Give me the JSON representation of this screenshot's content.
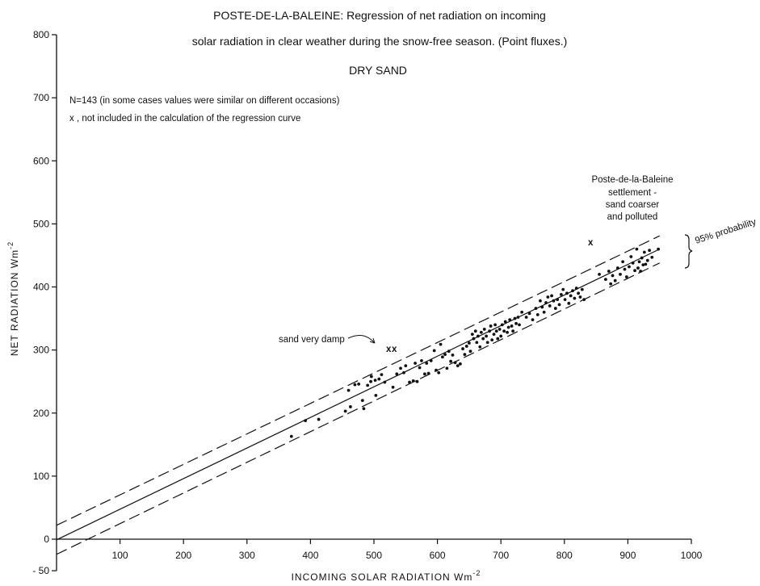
{
  "chart_data": {
    "type": "scatter",
    "title_lines": [
      "POSTE-DE-LA-BALEINE: Regression of net radiation on incoming",
      "solar radiation in clear weather during the snow-free season. (Point fluxes.)"
    ],
    "subtitle": "DRY SAND",
    "notes": [
      "N=143 (in some cases values were similar on different occasions)",
      "x , not included in the calculation of the regression curve"
    ],
    "xlabel": "INCOMING SOLAR RADIATION Wm",
    "xlabel_exp": "-2",
    "ylabel": "NET RADIATION Wm",
    "ylabel_exp": "-2",
    "xlim": [
      0,
      1000
    ],
    "ylim": [
      -50,
      800
    ],
    "xticks": [
      100,
      200,
      300,
      400,
      500,
      600,
      700,
      800,
      900,
      1000
    ],
    "yticks": [
      800,
      700,
      600,
      500,
      400,
      300,
      200,
      100,
      0
    ],
    "ytick_labels": [
      "800",
      "700",
      "600",
      "500",
      "400",
      "300",
      "200",
      "100",
      "0",
      "- 50"
    ],
    "yticks_all": [
      800,
      700,
      600,
      500,
      400,
      300,
      200,
      100,
      0,
      -50
    ],
    "grid": false,
    "regression": {
      "x": [
        0,
        950
      ],
      "y": [
        -1,
        460
      ]
    },
    "confidence_band": {
      "label": "95% probability",
      "upper": {
        "x": [
          0,
          950
        ],
        "y": [
          22,
          481
        ]
      },
      "lower": {
        "x": [
          0,
          950
        ],
        "y": [
          -24,
          438
        ]
      }
    },
    "annotations": [
      {
        "text_lines": [
          "sand very damp"
        ],
        "points": [
          {
            "x": 522,
            "y": 299
          },
          {
            "x": 531,
            "y": 299
          }
        ]
      },
      {
        "text_lines": [
          "Poste-de-la-Baleine",
          "settlement -",
          "sand coarser",
          "and polluted"
        ],
        "points": [
          {
            "x": 838,
            "y": 466
          }
        ]
      }
    ],
    "points": [
      {
        "x": 370,
        "y": 163
      },
      {
        "x": 392,
        "y": 188
      },
      {
        "x": 413,
        "y": 190
      },
      {
        "x": 455,
        "y": 203
      },
      {
        "x": 460,
        "y": 236
      },
      {
        "x": 463,
        "y": 210
      },
      {
        "x": 470,
        "y": 245
      },
      {
        "x": 476,
        "y": 246
      },
      {
        "x": 482,
        "y": 220
      },
      {
        "x": 484,
        "y": 207
      },
      {
        "x": 490,
        "y": 244
      },
      {
        "x": 495,
        "y": 250
      },
      {
        "x": 496,
        "y": 258
      },
      {
        "x": 502,
        "y": 252
      },
      {
        "x": 503,
        "y": 228
      },
      {
        "x": 508,
        "y": 254
      },
      {
        "x": 512,
        "y": 261
      },
      {
        "x": 517,
        "y": 249
      },
      {
        "x": 530,
        "y": 241
      },
      {
        "x": 536,
        "y": 262
      },
      {
        "x": 542,
        "y": 271
      },
      {
        "x": 547,
        "y": 264
      },
      {
        "x": 550,
        "y": 275
      },
      {
        "x": 556,
        "y": 249
      },
      {
        "x": 562,
        "y": 251
      },
      {
        "x": 565,
        "y": 279
      },
      {
        "x": 568,
        "y": 250
      },
      {
        "x": 572,
        "y": 272
      },
      {
        "x": 575,
        "y": 283
      },
      {
        "x": 580,
        "y": 262
      },
      {
        "x": 583,
        "y": 279
      },
      {
        "x": 586,
        "y": 263
      },
      {
        "x": 590,
        "y": 283
      },
      {
        "x": 595,
        "y": 299
      },
      {
        "x": 598,
        "y": 268
      },
      {
        "x": 602,
        "y": 264
      },
      {
        "x": 605,
        "y": 309
      },
      {
        "x": 608,
        "y": 289
      },
      {
        "x": 612,
        "y": 293
      },
      {
        "x": 615,
        "y": 271
      },
      {
        "x": 618,
        "y": 298
      },
      {
        "x": 621,
        "y": 282
      },
      {
        "x": 624,
        "y": 292
      },
      {
        "x": 628,
        "y": 280
      },
      {
        "x": 632,
        "y": 275
      },
      {
        "x": 636,
        "y": 278
      },
      {
        "x": 640,
        "y": 302
      },
      {
        "x": 643,
        "y": 293
      },
      {
        "x": 646,
        "y": 306
      },
      {
        "x": 650,
        "y": 311
      },
      {
        "x": 652,
        "y": 298
      },
      {
        "x": 655,
        "y": 325
      },
      {
        "x": 657,
        "y": 318
      },
      {
        "x": 660,
        "y": 330
      },
      {
        "x": 662,
        "y": 312
      },
      {
        "x": 664,
        "y": 322
      },
      {
        "x": 667,
        "y": 305
      },
      {
        "x": 669,
        "y": 328
      },
      {
        "x": 672,
        "y": 318
      },
      {
        "x": 674,
        "y": 333
      },
      {
        "x": 677,
        "y": 322
      },
      {
        "x": 679,
        "y": 312
      },
      {
        "x": 682,
        "y": 330
      },
      {
        "x": 684,
        "y": 338
      },
      {
        "x": 686,
        "y": 316
      },
      {
        "x": 689,
        "y": 325
      },
      {
        "x": 691,
        "y": 340
      },
      {
        "x": 693,
        "y": 330
      },
      {
        "x": 695,
        "y": 318
      },
      {
        "x": 698,
        "y": 333
      },
      {
        "x": 700,
        "y": 322
      },
      {
        "x": 702,
        "y": 340
      },
      {
        "x": 705,
        "y": 330
      },
      {
        "x": 707,
        "y": 345
      },
      {
        "x": 710,
        "y": 328
      },
      {
        "x": 712,
        "y": 336
      },
      {
        "x": 714,
        "y": 348
      },
      {
        "x": 717,
        "y": 338
      },
      {
        "x": 719,
        "y": 330
      },
      {
        "x": 722,
        "y": 350
      },
      {
        "x": 724,
        "y": 342
      },
      {
        "x": 727,
        "y": 352
      },
      {
        "x": 729,
        "y": 340
      },
      {
        "x": 733,
        "y": 360
      },
      {
        "x": 740,
        "y": 352
      },
      {
        "x": 745,
        "y": 358
      },
      {
        "x": 750,
        "y": 348
      },
      {
        "x": 755,
        "y": 366
      },
      {
        "x": 758,
        "y": 356
      },
      {
        "x": 762,
        "y": 378
      },
      {
        "x": 765,
        "y": 368
      },
      {
        "x": 768,
        "y": 360
      },
      {
        "x": 771,
        "y": 375
      },
      {
        "x": 774,
        "y": 384
      },
      {
        "x": 777,
        "y": 370
      },
      {
        "x": 780,
        "y": 386
      },
      {
        "x": 783,
        "y": 378
      },
      {
        "x": 786,
        "y": 366
      },
      {
        "x": 789,
        "y": 380
      },
      {
        "x": 792,
        "y": 372
      },
      {
        "x": 795,
        "y": 388
      },
      {
        "x": 798,
        "y": 396
      },
      {
        "x": 801,
        "y": 380
      },
      {
        "x": 804,
        "y": 390
      },
      {
        "x": 807,
        "y": 374
      },
      {
        "x": 810,
        "y": 386
      },
      {
        "x": 813,
        "y": 394
      },
      {
        "x": 816,
        "y": 382
      },
      {
        "x": 819,
        "y": 398
      },
      {
        "x": 822,
        "y": 390
      },
      {
        "x": 825,
        "y": 384
      },
      {
        "x": 828,
        "y": 396
      },
      {
        "x": 831,
        "y": 380
      },
      {
        "x": 855,
        "y": 420
      },
      {
        "x": 865,
        "y": 412
      },
      {
        "x": 870,
        "y": 425
      },
      {
        "x": 873,
        "y": 405
      },
      {
        "x": 876,
        "y": 418
      },
      {
        "x": 880,
        "y": 410
      },
      {
        "x": 884,
        "y": 430
      },
      {
        "x": 888,
        "y": 420
      },
      {
        "x": 892,
        "y": 440
      },
      {
        "x": 895,
        "y": 428
      },
      {
        "x": 898,
        "y": 416
      },
      {
        "x": 902,
        "y": 432
      },
      {
        "x": 905,
        "y": 448
      },
      {
        "x": 908,
        "y": 438
      },
      {
        "x": 911,
        "y": 426
      },
      {
        "x": 914,
        "y": 460
      },
      {
        "x": 916,
        "y": 430
      },
      {
        "x": 918,
        "y": 440
      },
      {
        "x": 920,
        "y": 425
      },
      {
        "x": 922,
        "y": 446
      },
      {
        "x": 924,
        "y": 435
      },
      {
        "x": 926,
        "y": 455
      },
      {
        "x": 928,
        "y": 436
      },
      {
        "x": 931,
        "y": 442
      },
      {
        "x": 934,
        "y": 458
      },
      {
        "x": 938,
        "y": 447
      },
      {
        "x": 948,
        "y": 460
      }
    ]
  }
}
